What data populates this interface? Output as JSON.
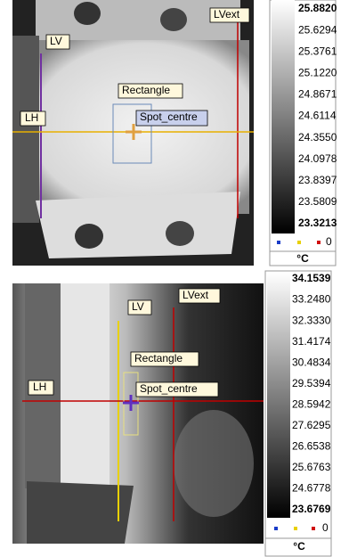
{
  "panels": [
    {
      "labels": {
        "lv": "LV",
        "lvext": "LVext",
        "rectangle": "Rectangle",
        "lh": "LH",
        "spot": "Spot_centre"
      },
      "scale": [
        "25.8820",
        "25.6294",
        "25.3761",
        "25.1220",
        "24.8671",
        "24.6114",
        "24.3550",
        "24.0978",
        "23.8397",
        "23.5809",
        "23.3213"
      ],
      "legend_value": "0",
      "unit": "°C"
    },
    {
      "labels": {
        "lv": "LV",
        "lvext": "LVext",
        "rectangle": "Rectangle",
        "lh": "LH",
        "spot": "Spot_centre"
      },
      "scale": [
        "34.1539",
        "33.2480",
        "32.3330",
        "31.4174",
        "30.4834",
        "29.5394",
        "28.5942",
        "27.6295",
        "26.6538",
        "25.6763",
        "24.6778",
        "23.6769"
      ],
      "legend_value": "0",
      "unit": "°C"
    }
  ]
}
